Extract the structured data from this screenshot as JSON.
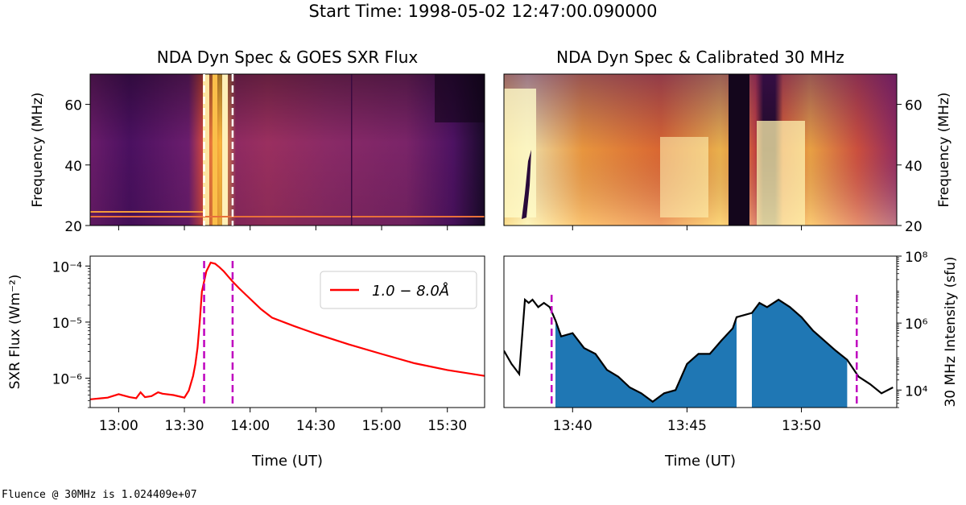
{
  "figure": {
    "suptitle": "Start Time: 1998-05-02 12:47:00.090000",
    "console_output": "Fluence @ 30MHz is 1.024409e+07",
    "colors": {
      "goes_line": "#ff0000",
      "fill": "#1f77b4",
      "mag_lines": "#bf00bf",
      "black_line": "#000000"
    }
  },
  "chart_data": [
    {
      "id": "nda_goes_spec",
      "type": "heatmap",
      "title": "NDA Dyn Spec & GOES SXR Flux",
      "ylabel": "Frequency (MHz)",
      "ylim": [
        20,
        70
      ],
      "yticks": [
        "20",
        "40",
        "60"
      ],
      "colormap": "inferno",
      "x_time_range": [
        "12:47",
        "15:47"
      ],
      "markers": {
        "style": "white dashed",
        "times": [
          "13:39",
          "13:52"
        ]
      }
    },
    {
      "id": "goes_sxr",
      "type": "line",
      "ylabel": "SXR Flux (Wm⁻²)",
      "xlabel": "Time (UT)",
      "yscale": "log",
      "ylim": [
        3e-07,
        0.00015
      ],
      "yticks": [
        "10⁻⁶",
        "10⁻⁵",
        "10⁻⁴"
      ],
      "xticks": [
        "13:00",
        "13:30",
        "14:00",
        "14:30",
        "15:00",
        "15:30"
      ],
      "legend": {
        "label": "1.0 − 8.0Å",
        "location": "upper right"
      },
      "series": [
        {
          "name": "1.0 − 8.0Å",
          "x": [
            "12:47",
            "12:55",
            "13:00",
            "13:05",
            "13:08",
            "13:10",
            "13:12",
            "13:15",
            "13:18",
            "13:20",
            "13:25",
            "13:30",
            "13:32",
            "13:34",
            "13:35",
            "13:36",
            "13:37",
            "13:38",
            "13:40",
            "13:42",
            "13:44",
            "13:46",
            "13:48",
            "13:50",
            "13:52",
            "13:55",
            "14:00",
            "14:05",
            "14:10",
            "14:20",
            "14:30",
            "14:45",
            "15:00",
            "15:15",
            "15:30",
            "15:47"
          ],
          "values": [
            4.2e-07,
            4.5e-07,
            5.2e-07,
            4.6e-07,
            4.4e-07,
            5.6e-07,
            4.6e-07,
            4.8e-07,
            5.6e-07,
            5.3e-07,
            5e-07,
            4.5e-07,
            6e-07,
            1.1e-06,
            1.8e-06,
            3.5e-06,
            1e-05,
            3.5e-05,
            8e-05,
            0.000115,
            0.00011,
            9.5e-05,
            8e-05,
            6.5e-05,
            5.3e-05,
            4e-05,
            2.6e-05,
            1.7e-05,
            1.2e-05,
            8.5e-06,
            6.2e-06,
            4e-06,
            2.7e-06,
            1.85e-06,
            1.4e-06,
            1.1e-06
          ]
        }
      ],
      "markers": {
        "style": "magenta dashed",
        "times": [
          "13:39",
          "13:52"
        ]
      }
    },
    {
      "id": "nda_cal_spec",
      "type": "heatmap",
      "title": "NDA Dyn Spec & Calibrated 30 MHz",
      "ylabel": "Frequency (MHz)",
      "ylim": [
        20,
        70
      ],
      "yticks": [
        "20",
        "40",
        "60"
      ],
      "colormap": "inferno",
      "x_time_range": [
        "13:37:00",
        "13:54:10"
      ]
    },
    {
      "id": "nda_30mhz",
      "type": "area",
      "ylabel": "30 MHz Intensity (sfu)",
      "xlabel": "Time (UT)",
      "yscale": "log",
      "ylim": [
        3000,
        100000000.0
      ],
      "yticks": [
        "10⁴",
        "10⁶",
        "10⁸"
      ],
      "xticks": [
        "13:40",
        "13:45",
        "13:50"
      ],
      "series": [
        {
          "x": [
            "13:37:00",
            "13:37:20",
            "13:37:40",
            "13:37:55",
            "13:38:05",
            "13:38:15",
            "13:38:30",
            "13:38:45",
            "13:39:00",
            "13:39:15",
            "13:39:30",
            "13:40:00",
            "13:40:30",
            "13:41:00",
            "13:41:30",
            "13:42:00",
            "13:42:30",
            "13:43:00",
            "13:43:30",
            "13:44:00",
            "13:44:30",
            "13:45:00",
            "13:45:30",
            "13:46:00",
            "13:46:30",
            "13:47:00",
            "13:47:10",
            "13:47:50",
            "13:48:10",
            "13:48:30",
            "13:49:00",
            "13:49:30",
            "13:50:00",
            "13:50:30",
            "13:51:00",
            "13:51:30",
            "13:52:00",
            "13:52:30",
            "13:53:00",
            "13:53:30",
            "13:54:00"
          ],
          "values": [
            150000,
            60000,
            30000,
            5000000,
            4000000,
            5000000,
            3000000,
            4000000,
            3000000,
            1200000,
            400000,
            500000,
            180000,
            120000,
            40000,
            25000,
            12000,
            8000,
            4500,
            8000,
            10000,
            60000,
            120000,
            120000,
            300000,
            700000,
            1500000,
            2000000,
            4000000,
            3000000,
            5000000,
            3000000,
            1500000,
            600000,
            300000,
            150000,
            80000,
            25000,
            15000,
            8000,
            12000
          ]
        }
      ],
      "fill_intervals": [
        [
          "13:39:05",
          "13:47:10"
        ],
        [
          "13:47:50",
          "13:52:25"
        ]
      ],
      "markers": {
        "style": "magenta dashed",
        "times": [
          "13:39:05",
          "13:52:25"
        ]
      }
    }
  ]
}
